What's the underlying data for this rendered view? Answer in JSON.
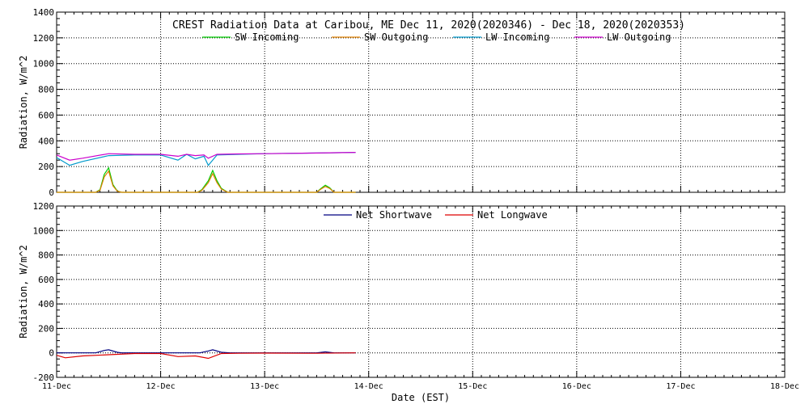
{
  "chart_data": [
    {
      "type": "line",
      "title": "CREST Radiation Data at Caribou, ME   Dec 11, 2020(2020346) - Dec 18, 2020(2020353)",
      "ylabel": "Radiation, W/m^2",
      "xlabel": "",
      "ylim": [
        0,
        1400
      ],
      "yticks": [
        0,
        200,
        400,
        600,
        800,
        1000,
        1200,
        1400
      ],
      "xlim": [
        "2020-12-11",
        "2020-12-18"
      ],
      "grid": true,
      "legend": "top",
      "series": [
        {
          "name": "SW Incoming",
          "color": "#00cc00",
          "x": [
            "2020-12-11 00:00",
            "2020-12-11 09:00",
            "2020-12-11 10:00",
            "2020-12-11 11:00",
            "2020-12-11 12:00",
            "2020-12-11 13:00",
            "2020-12-11 14:00",
            "2020-12-11 15:00",
            "2020-12-12 08:30",
            "2020-12-12 09:30",
            "2020-12-12 11:00",
            "2020-12-12 12:00",
            "2020-12-12 13:00",
            "2020-12-12 14:00",
            "2020-12-12 15:30",
            "2020-12-13 12:00",
            "2020-12-13 13:00",
            "2020-12-13 14:00",
            "2020-12-13 15:00",
            "2020-12-13 16:00",
            "2020-12-13 21:00"
          ],
          "y": [
            0,
            0,
            20,
            140,
            190,
            60,
            10,
            0,
            0,
            20,
            90,
            170,
            90,
            30,
            0,
            0,
            30,
            55,
            35,
            0,
            0
          ]
        },
        {
          "name": "SW Outgoing",
          "color": "#e08000",
          "x": [
            "2020-12-11 00:00",
            "2020-12-11 09:00",
            "2020-12-11 10:00",
            "2020-12-11 11:00",
            "2020-12-11 12:00",
            "2020-12-11 13:00",
            "2020-12-11 14:00",
            "2020-12-11 15:00",
            "2020-12-12 08:30",
            "2020-12-12 09:30",
            "2020-12-12 11:00",
            "2020-12-12 12:00",
            "2020-12-12 13:00",
            "2020-12-12 14:00",
            "2020-12-12 15:30",
            "2020-12-13 12:00",
            "2020-12-13 13:00",
            "2020-12-13 14:00",
            "2020-12-13 15:00",
            "2020-12-13 16:00",
            "2020-12-13 21:00"
          ],
          "y": [
            0,
            0,
            15,
            120,
            165,
            50,
            8,
            0,
            0,
            15,
            75,
            145,
            75,
            25,
            0,
            0,
            25,
            45,
            30,
            0,
            0
          ]
        },
        {
          "name": "LW Incoming",
          "color": "#0099cc",
          "x": [
            "2020-12-11 00:00",
            "2020-12-11 03:00",
            "2020-12-11 06:00",
            "2020-12-11 12:00",
            "2020-12-11 18:00",
            "2020-12-12 00:00",
            "2020-12-12 04:00",
            "2020-12-12 06:00",
            "2020-12-12 08:00",
            "2020-12-12 10:00",
            "2020-12-12 11:00",
            "2020-12-12 13:00",
            "2020-12-12 18:00",
            "2020-12-13 00:00",
            "2020-12-13 12:00",
            "2020-12-13 21:00"
          ],
          "y": [
            270,
            210,
            240,
            285,
            290,
            290,
            250,
            295,
            260,
            280,
            210,
            290,
            295,
            300,
            305,
            310
          ]
        },
        {
          "name": "LW Outgoing",
          "color": "#cc00cc",
          "x": [
            "2020-12-11 00:00",
            "2020-12-11 03:00",
            "2020-12-11 06:00",
            "2020-12-11 12:00",
            "2020-12-11 18:00",
            "2020-12-12 00:00",
            "2020-12-12 04:00",
            "2020-12-12 06:00",
            "2020-12-12 08:00",
            "2020-12-12 10:00",
            "2020-12-12 11:00",
            "2020-12-12 13:00",
            "2020-12-12 18:00",
            "2020-12-13 00:00",
            "2020-12-13 12:00",
            "2020-12-13 21:00"
          ],
          "y": [
            290,
            250,
            265,
            300,
            295,
            295,
            280,
            295,
            285,
            290,
            265,
            295,
            298,
            300,
            305,
            310
          ]
        }
      ]
    },
    {
      "type": "line",
      "title": "",
      "ylabel": "Radiation, W/m^2",
      "xlabel": "Date (EST)",
      "ylim": [
        -200,
        1200
      ],
      "yticks": [
        -200,
        0,
        200,
        400,
        600,
        800,
        1000,
        1200
      ],
      "xlim": [
        "2020-12-11",
        "2020-12-18"
      ],
      "xticks": [
        "11-Dec",
        "12-Dec",
        "13-Dec",
        "14-Dec",
        "15-Dec",
        "16-Dec",
        "17-Dec",
        "18-Dec"
      ],
      "grid": true,
      "legend": "top",
      "series": [
        {
          "name": "Net Shortwave",
          "color": "#000080",
          "x": [
            "2020-12-11 00:00",
            "2020-12-11 09:00",
            "2020-12-11 11:00",
            "2020-12-11 12:00",
            "2020-12-11 14:00",
            "2020-12-11 15:00",
            "2020-12-12 09:00",
            "2020-12-12 11:00",
            "2020-12-12 12:00",
            "2020-12-12 14:00",
            "2020-12-12 16:00",
            "2020-12-13 12:00",
            "2020-12-13 14:00",
            "2020-12-13 16:00",
            "2020-12-13 21:00"
          ],
          "y": [
            0,
            0,
            20,
            25,
            5,
            0,
            0,
            15,
            25,
            5,
            0,
            0,
            8,
            0,
            0
          ]
        },
        {
          "name": "Net Longwave",
          "color": "#dd0000",
          "x": [
            "2020-12-11 00:00",
            "2020-12-11 02:00",
            "2020-12-11 06:00",
            "2020-12-11 12:00",
            "2020-12-11 18:00",
            "2020-12-12 00:00",
            "2020-12-12 04:00",
            "2020-12-12 08:00",
            "2020-12-12 11:00",
            "2020-12-12 14:00",
            "2020-12-12 18:00",
            "2020-12-13 00:00",
            "2020-12-13 12:00",
            "2020-12-13 21:00"
          ],
          "y": [
            -20,
            -40,
            -25,
            -15,
            -5,
            -5,
            -30,
            -25,
            -45,
            -5,
            -3,
            -2,
            -3,
            0
          ]
        }
      ]
    }
  ]
}
